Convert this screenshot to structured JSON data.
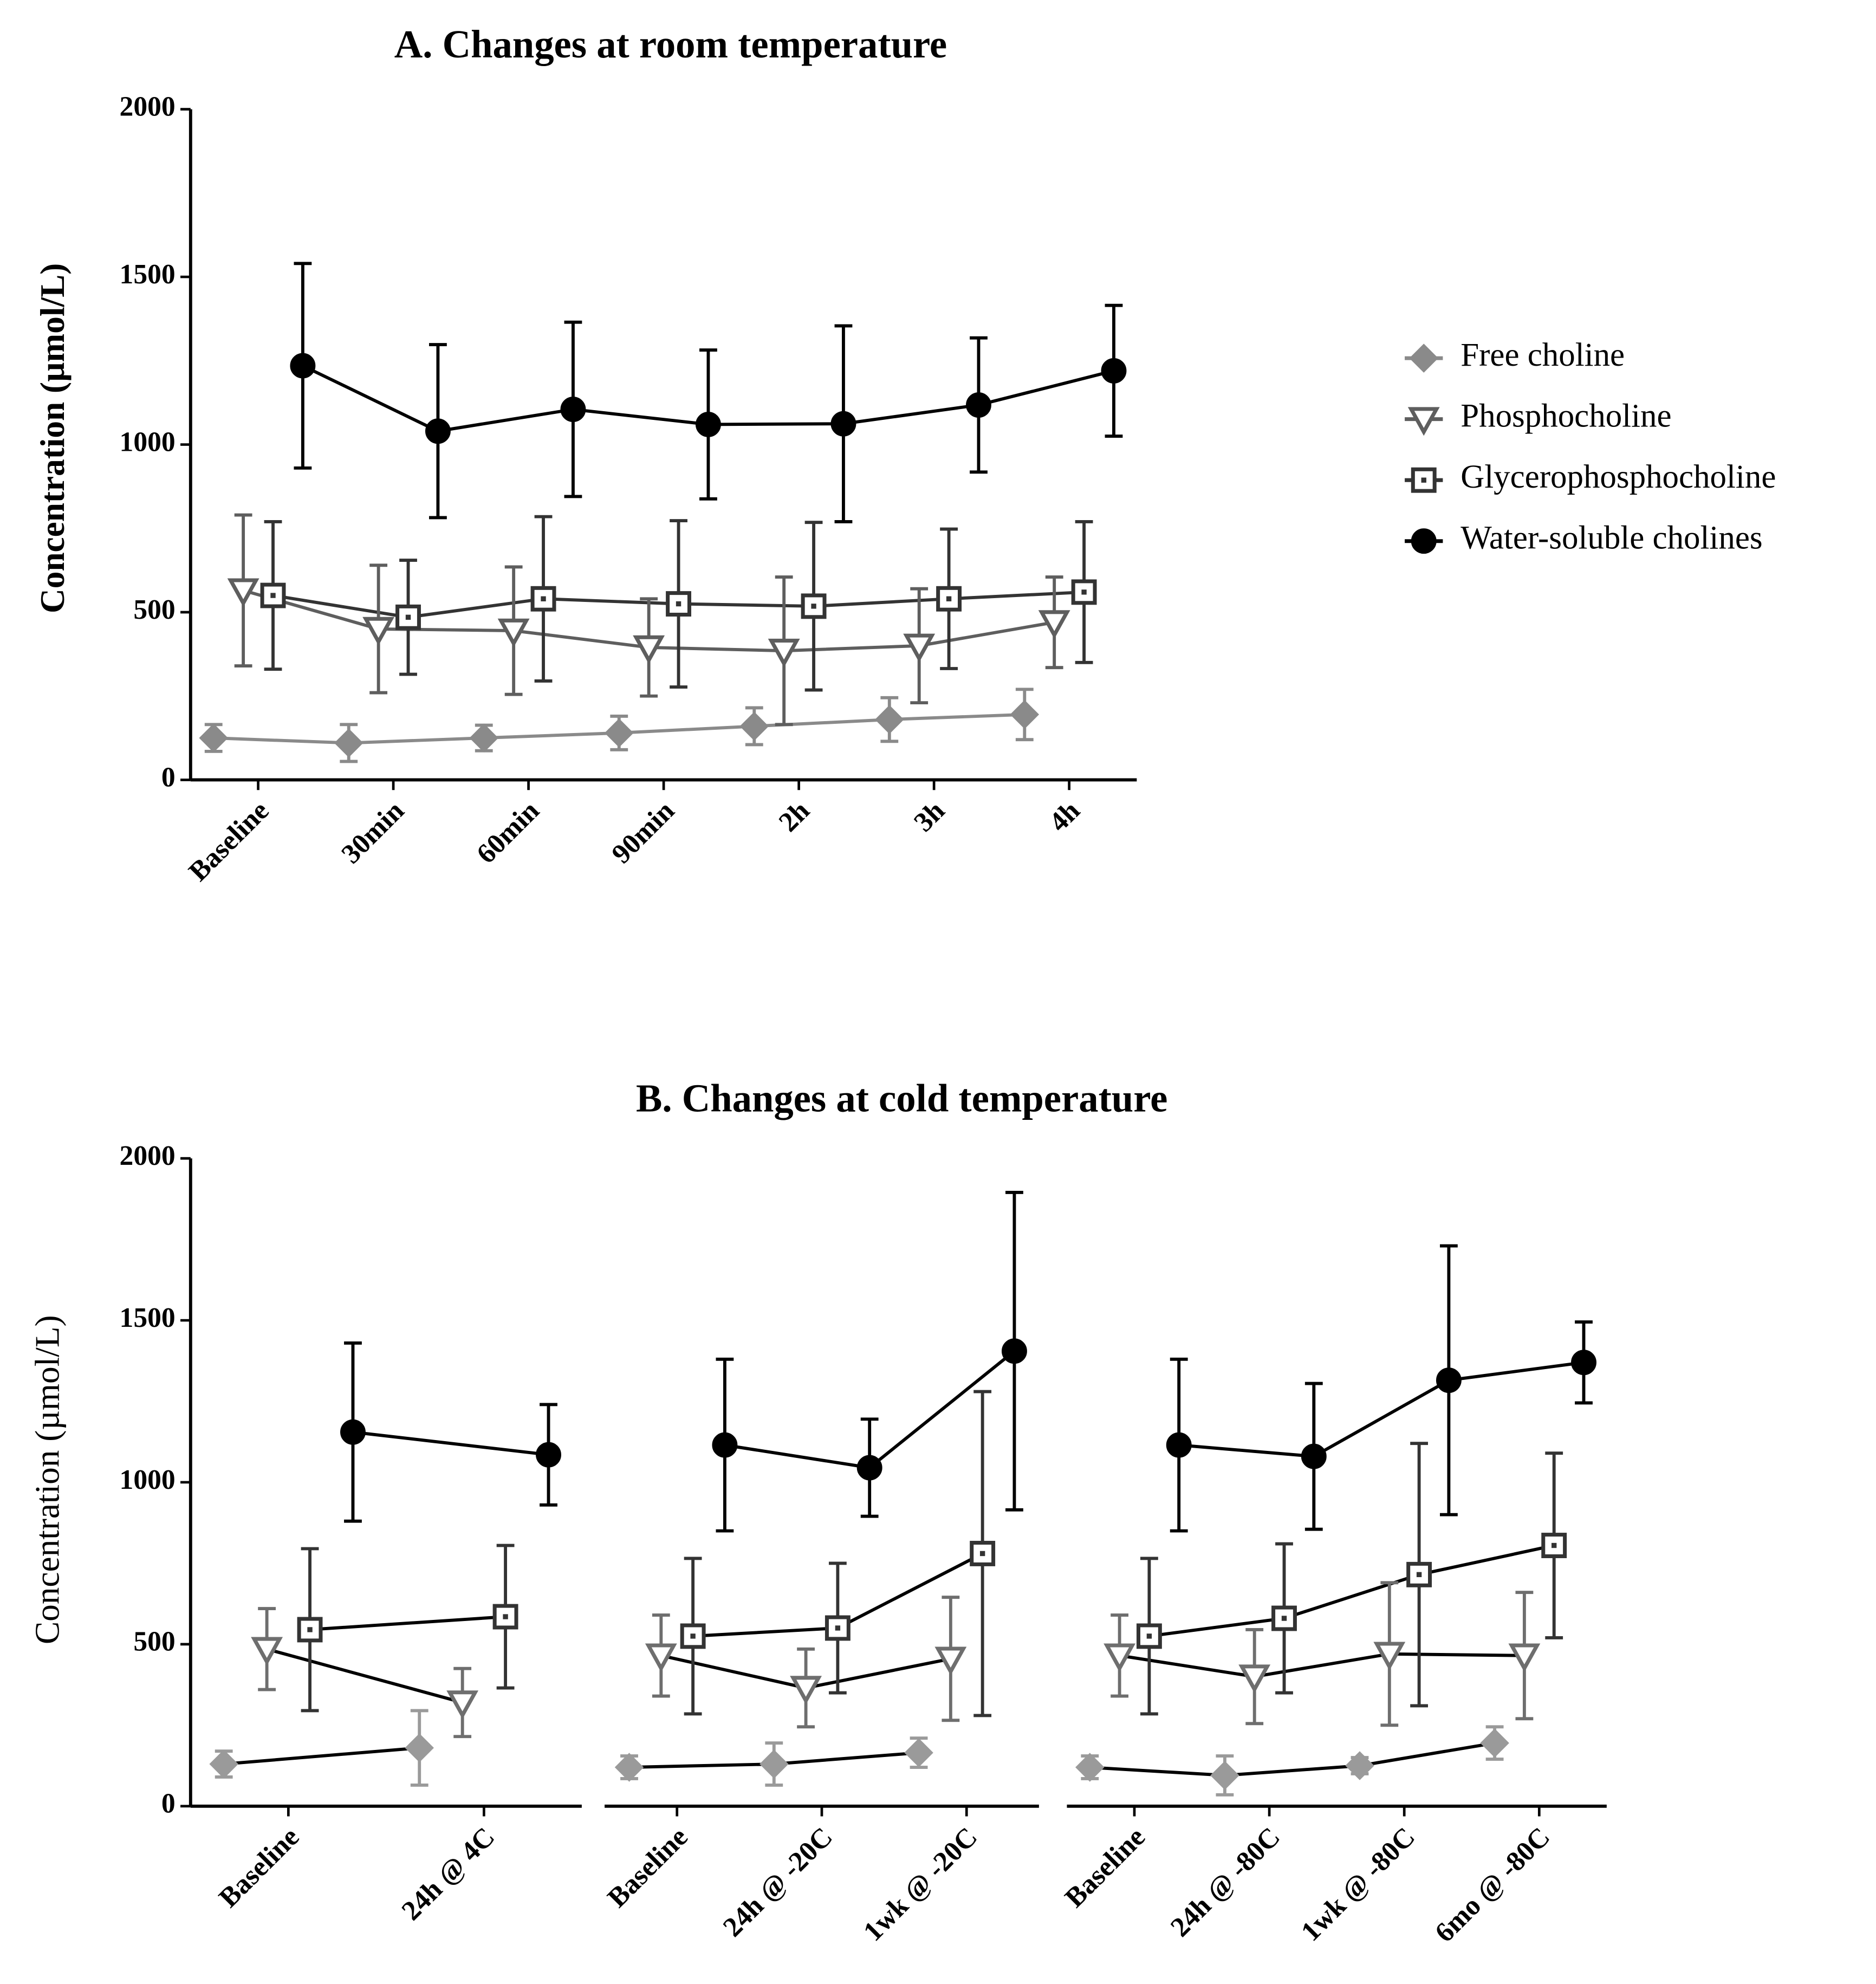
{
  "chart_data": [
    {
      "type": "line",
      "title": "A.  Changes at room temperature",
      "y_label": "Concentration (µmol/L)",
      "categories": [
        "Baseline",
        "30min",
        "60min",
        "90min",
        "2h",
        "3h",
        "4h"
      ],
      "ylim": [
        0,
        2000
      ],
      "yticks": [
        0,
        500,
        1000,
        1500,
        2000
      ],
      "series": [
        {
          "name": "Free choline",
          "color": "#8a8a8a",
          "marker": "diamond",
          "values": [
            125,
            110,
            125,
            140,
            160,
            180,
            195
          ],
          "errors": [
            40,
            55,
            38,
            50,
            55,
            65,
            75
          ]
        },
        {
          "name": "Phosphocholine",
          "color": "#5e5e5e",
          "marker": "triangle-down",
          "values": [
            565,
            450,
            445,
            395,
            385,
            400,
            470
          ],
          "errors": [
            225,
            190,
            190,
            145,
            220,
            170,
            135
          ]
        },
        {
          "name": "Glycerophosphocholine",
          "color": "#333333",
          "marker": "square",
          "values": [
            550,
            485,
            540,
            525,
            518,
            540,
            560
          ],
          "errors": [
            220,
            170,
            245,
            248,
            250,
            208,
            210
          ]
        },
        {
          "name": "Water-soluble cholines",
          "color": "#000000",
          "marker": "circle",
          "values": [
            1235,
            1040,
            1105,
            1060,
            1062,
            1118,
            1220
          ],
          "errors": [
            305,
            258,
            260,
            222,
            292,
            200,
            195
          ]
        }
      ]
    },
    {
      "type": "line",
      "title": "B.  Changes at cold temperature",
      "y_label": "Concentration (µmol/L)",
      "ylim": [
        0,
        2000
      ],
      "yticks": [
        0,
        500,
        1000,
        1500,
        2000
      ],
      "line_color": "#000000",
      "panels": [
        {
          "categories": [
            "Baseline",
            "24h @ 4C"
          ],
          "series": [
            {
              "color": "#9a9a9a",
              "marker": "diamond",
              "values": [
                130,
                180
              ],
              "errors": [
                40,
                115
              ]
            },
            {
              "color": "#6e6e6e",
              "marker": "triangle-down",
              "values": [
                485,
                320
              ],
              "errors": [
                125,
                105
              ]
            },
            {
              "color": "#333333",
              "marker": "square",
              "values": [
                545,
                585
              ],
              "errors": [
                250,
                220
              ]
            },
            {
              "color": "#000000",
              "marker": "circle",
              "values": [
                1155,
                1085
              ],
              "errors": [
                275,
                155
              ]
            }
          ]
        },
        {
          "categories": [
            "Baseline",
            "24h @ -20C",
            "1wk @ -20C"
          ],
          "series": [
            {
              "color": "#9a9a9a",
              "marker": "diamond",
              "values": [
                120,
                130,
                165
              ],
              "errors": [
                35,
                65,
                45
              ]
            },
            {
              "color": "#6e6e6e",
              "marker": "triangle-down",
              "values": [
                465,
                365,
                455
              ],
              "errors": [
                125,
                120,
                190
              ]
            },
            {
              "color": "#333333",
              "marker": "square",
              "values": [
                525,
                550,
                780
              ],
              "errors": [
                240,
                200,
                500
              ]
            },
            {
              "color": "#000000",
              "marker": "circle",
              "values": [
                1115,
                1045,
                1405
              ],
              "errors": [
                265,
                150,
                490
              ]
            }
          ]
        },
        {
          "categories": [
            "Baseline",
            "24h @ -80C",
            "1wk @ -80C",
            "6mo @ -80C"
          ],
          "series": [
            {
              "color": "#9a9a9a",
              "marker": "diamond",
              "values": [
                120,
                95,
                125,
                195
              ],
              "errors": [
                35,
                60,
                25,
                50
              ]
            },
            {
              "color": "#6e6e6e",
              "marker": "triangle-down",
              "values": [
                465,
                400,
                470,
                465
              ],
              "errors": [
                125,
                145,
                220,
                195
              ]
            },
            {
              "color": "#333333",
              "marker": "square",
              "values": [
                525,
                580,
                715,
                805
              ],
              "errors": [
                240,
                230,
                405,
                285
              ]
            },
            {
              "color": "#000000",
              "marker": "circle",
              "values": [
                1115,
                1080,
                1315,
                1370
              ],
              "errors": [
                265,
                225,
                415,
                125
              ]
            }
          ]
        }
      ]
    }
  ]
}
